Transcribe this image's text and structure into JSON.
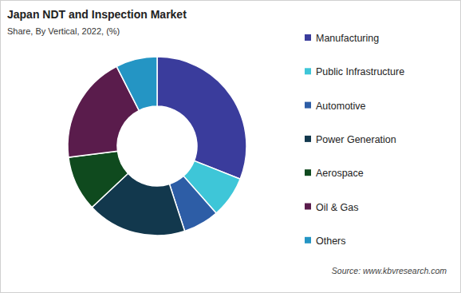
{
  "chart_data": {
    "type": "pie",
    "title": "Japan NDT and Inspection Market",
    "subtitle": "Share, By Vertical, 2022, (%)",
    "categories": [
      "Manufacturing",
      "Public Infrastructure",
      "Automotive",
      "Power Generation",
      "Aerospace",
      "Oil & Gas",
      "Others"
    ],
    "values": [
      31,
      7.5,
      6.5,
      18,
      10,
      19.5,
      7.5
    ],
    "colors": [
      "#3a3c9c",
      "#3ec6d8",
      "#2d5da6",
      "#12384d",
      "#0f4a1e",
      "#5a1c4c",
      "#2495c4"
    ],
    "legend": "right",
    "source": "Source: www.kbvresearch.com"
  }
}
